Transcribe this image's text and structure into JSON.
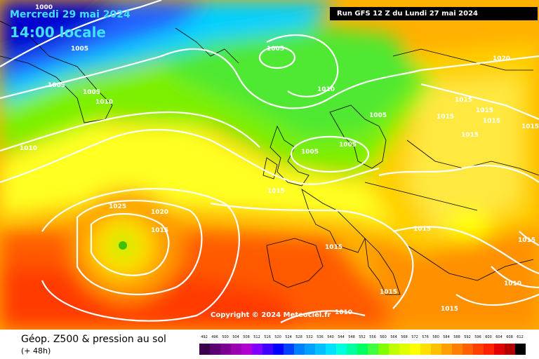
{
  "map": {
    "date_title": "Mercredi 29 mai 2024",
    "time_title": "14:00 locale",
    "run_info": "Run GFS 12 Z du Lundi 27 mai 2024",
    "copyright": "Copyright © 2024 Meteociel.fr",
    "isobar_labels": [
      "1000",
      "1005",
      "1005",
      "1005",
      "1010",
      "1010",
      "1005",
      "1010",
      "1005",
      "1005",
      "1005",
      "1015",
      "1025",
      "1020",
      "1015",
      "1015",
      "1015",
      "1010",
      "1015",
      "1015",
      "1015",
      "1015",
      "1015",
      "1020",
      "1015",
      "1015",
      "1010",
      "1015",
      "1015"
    ]
  },
  "footer": {
    "title": "Géop. Z500 & pression au sol",
    "subtitle": "(+ 48h)"
  },
  "legend": {
    "values": [
      "492",
      "496",
      "500",
      "504",
      "508",
      "512",
      "516",
      "520",
      "524",
      "528",
      "532",
      "536",
      "540",
      "544",
      "548",
      "552",
      "556",
      "560",
      "564",
      "568",
      "572",
      "576",
      "580",
      "584",
      "588",
      "592",
      "596",
      "600",
      "604",
      "608",
      "612"
    ],
    "colors": [
      "#3a004a",
      "#5a0070",
      "#7a0090",
      "#9a00b0",
      "#b000d0",
      "#8000ff",
      "#4000ff",
      "#0000ff",
      "#0040ff",
      "#0080ff",
      "#00a0ff",
      "#00c0ff",
      "#00e0ff",
      "#00ffe0",
      "#00ffa0",
      "#00ff60",
      "#40ff40",
      "#80ff00",
      "#c0ff00",
      "#e0ff00",
      "#ffff00",
      "#ffe000",
      "#ffc000",
      "#ffa000",
      "#ff8000",
      "#ff6000",
      "#ff4000",
      "#ff2000",
      "#e00000",
      "#b00000",
      "#000000"
    ]
  }
}
